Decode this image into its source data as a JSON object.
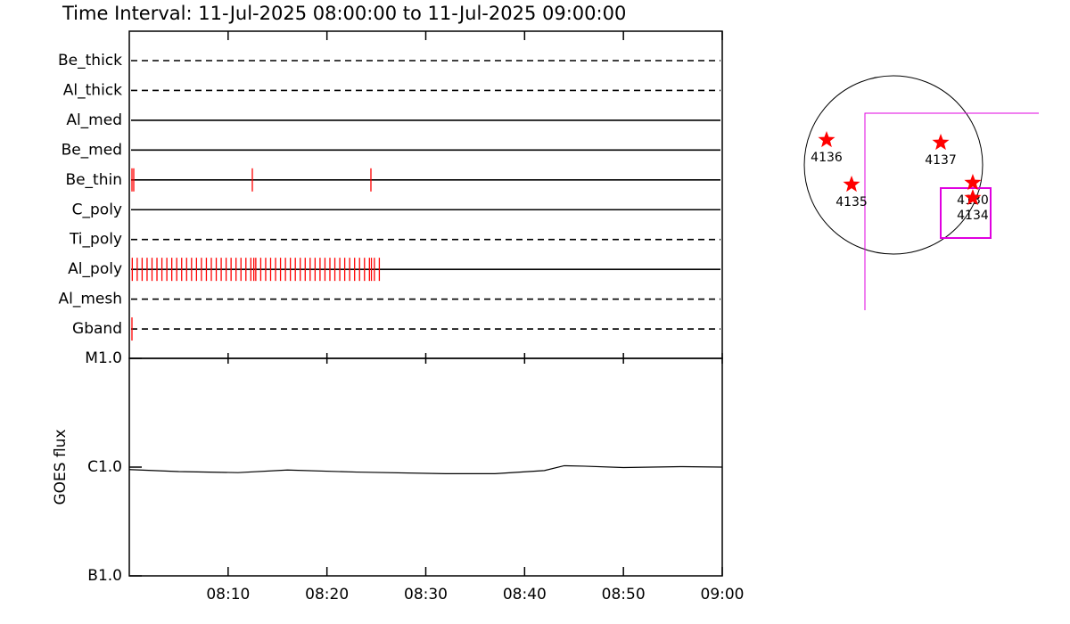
{
  "chart_data": [
    {
      "type": "timeline",
      "title": "Time Interval: 11-Jul-2025 08:00:00 to 11-Jul-2025 09:00:00",
      "xlim": [
        0,
        60
      ],
      "color": "#ff0000",
      "rows": [
        {
          "name": "Be_thick",
          "style": "dashed",
          "events": []
        },
        {
          "name": "Al_thick",
          "style": "dashed",
          "events": []
        },
        {
          "name": "Al_med",
          "style": "solid",
          "events": []
        },
        {
          "name": "Be_med",
          "style": "solid",
          "events": []
        },
        {
          "name": "Be_thin",
          "style": "solid",
          "events": [
            0.27,
            0.45,
            12.45,
            24.45
          ]
        },
        {
          "name": "C_poly",
          "style": "solid",
          "events": []
        },
        {
          "name": "Ti_poly",
          "style": "dashed",
          "events": []
        },
        {
          "name": "Al_poly",
          "style": "solid",
          "events": [
            0.3,
            0.8,
            1.3,
            1.8,
            2.3,
            2.8,
            3.3,
            3.8,
            4.3,
            4.8,
            5.3,
            5.8,
            6.3,
            6.8,
            7.3,
            7.8,
            8.3,
            8.8,
            9.3,
            9.8,
            10.3,
            10.8,
            11.3,
            11.8,
            12.3,
            12.6,
            12.8,
            13.3,
            13.8,
            14.3,
            14.8,
            15.3,
            15.8,
            16.3,
            16.8,
            17.3,
            17.8,
            18.3,
            18.8,
            19.3,
            19.8,
            20.3,
            20.8,
            21.3,
            21.8,
            22.3,
            22.8,
            23.3,
            23.8,
            24.3,
            24.5,
            24.8,
            25.3
          ]
        },
        {
          "name": "Al_mesh",
          "style": "dashed",
          "events": []
        },
        {
          "name": "Gband",
          "style": "dashed",
          "events": [
            0.27
          ]
        }
      ]
    },
    {
      "type": "line",
      "y_label": "GOES flux",
      "log_scale": true,
      "color": "#000000",
      "x": [
        0,
        5,
        11,
        16,
        23,
        32,
        37,
        42,
        44,
        46,
        50,
        56,
        60
      ],
      "values": [
        9.5e-07,
        9.1e-07,
        8.9e-07,
        9.4e-07,
        9e-07,
        8.7e-07,
        8.7e-07,
        9.3e-07,
        1.03e-06,
        1.02e-06,
        9.9e-07,
        1.01e-06,
        1e-06
      ],
      "xlim": [
        0,
        60
      ],
      "xticks": [
        {
          "value": 10,
          "label": "08:10"
        },
        {
          "value": 20,
          "label": "08:20"
        },
        {
          "value": 30,
          "label": "08:30"
        },
        {
          "value": 40,
          "label": "08:40"
        },
        {
          "value": 50,
          "label": "08:50"
        },
        {
          "value": 60,
          "label": "09:00"
        }
      ],
      "ylim": [
        1e-07,
        1e-05
      ],
      "yticks": [
        {
          "value": 1e-07,
          "label": "B1.0"
        },
        {
          "value": 1e-06,
          "label": "C1.0"
        },
        {
          "value": 1e-05,
          "label": "M1.0"
        }
      ]
    },
    {
      "type": "scatter",
      "color": "#ff0000",
      "labels": [
        "4136",
        "4135",
        "4137",
        "4130",
        "4134"
      ],
      "x": [
        -720,
        -451,
        509,
        854,
        854
      ],
      "values": [
        269,
        -211,
        240,
        -192,
        -355
      ]
    }
  ]
}
